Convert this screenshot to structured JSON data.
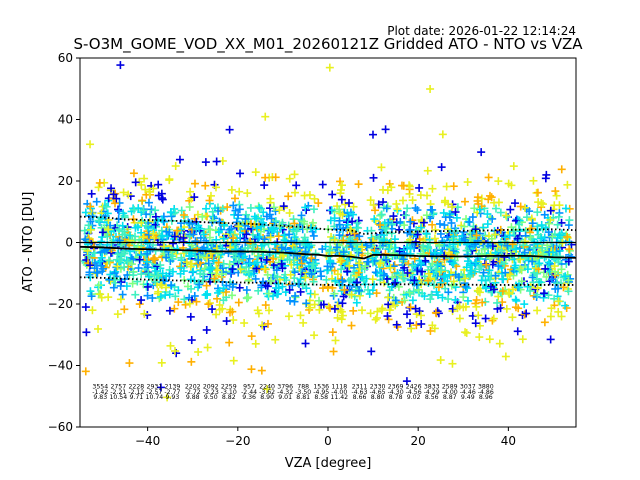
{
  "chart_data": {
    "type": "scatter",
    "plot_date": "Plot date: 2026-01-22 12:14:24",
    "title": "S-O3M_GOME_VOD_XX_M01_20260121Z Gridded ATO - NTO vs VZA",
    "xlabel": "VZA [degree]",
    "ylabel": "ATO - NTO [DU]",
    "xlim": [
      -55,
      55
    ],
    "ylim": [
      -60,
      60
    ],
    "xticks": [
      -40,
      -20,
      0,
      20,
      40
    ],
    "xtick_labels": [
      "−40",
      "−20",
      "0",
      "20",
      "40"
    ],
    "yticks": [
      -60,
      -40,
      -20,
      0,
      20,
      40,
      60
    ],
    "ytick_labels": [
      "−60",
      "−40",
      "−20",
      "0",
      "20",
      "40",
      "60"
    ],
    "zero_line": 0,
    "colors": {
      "navy": "#0000e0",
      "blue": "#0090ff",
      "cyan": "#00e0f0",
      "aqua": "#40f0c0",
      "green": "#80ff80",
      "yellow": "#e8f020",
      "orange": "#ffb000",
      "median": "#000000"
    },
    "stats_x": [
      -50.5,
      -46.5,
      -42.5,
      -38.5,
      -34.5,
      -30,
      -26,
      -22,
      -17.5,
      -13.5,
      -9.5,
      -5.5,
      -1.5,
      2.5,
      7,
      11,
      15,
      19,
      23,
      27,
      31,
      35,
      39,
      43,
      47,
      51
    ],
    "stats": {
      "counts": [
        "3554",
        "2757",
        "2228",
        "2931",
        "2139",
        "2202",
        "2092",
        "2259",
        "957",
        "2240",
        "3796",
        "788",
        "1536",
        "1118",
        "2311",
        "2330",
        "2369",
        "2426",
        "3833",
        "2589",
        "3037",
        "3880",
        "",
        "",
        "",
        ""
      ],
      "median": [
        "-1.42",
        "-2.21",
        "-2.12",
        "-2.57",
        "-2.77",
        "-2.72",
        "-3.23",
        "-3.10",
        "-2.44",
        "-3.62",
        "-4.32",
        "-3.50",
        "-4.95",
        "-4.00",
        "-4.63",
        "-4.65",
        "-4.30",
        "-4.56",
        "-4.29",
        "-4.00",
        "-4.46",
        "-4.86",
        "",
        "",
        "",
        ""
      ],
      "std": [
        "9.83",
        "10.54",
        "9.71",
        "10.74",
        "9.93",
        "9.88",
        "9.50",
        "8.82",
        "9.36",
        "8.90",
        "9.01",
        "8.81",
        "8.58",
        "11.42",
        "8.66",
        "8.80",
        "8.78",
        "9.02",
        "8.56",
        "8.87",
        "9.49",
        "8.96",
        "",
        "",
        "",
        ""
      ]
    },
    "median_line": {
      "x": [
        -55,
        -50,
        -45,
        -40,
        -35,
        -30,
        -25,
        -20,
        -15,
        -10,
        -5,
        -2,
        0,
        2,
        5,
        8,
        10,
        15,
        20,
        25,
        30,
        35,
        40,
        45,
        50,
        55
      ],
      "y": [
        -1.4,
        -1.6,
        -2.0,
        -2.2,
        -2.4,
        -2.6,
        -2.9,
        -2.9,
        -3.0,
        -3.3,
        -3.8,
        -4.0,
        -4.4,
        -4.3,
        -4.6,
        -5.2,
        -4.0,
        -4.1,
        -4.4,
        -4.5,
        -4.5,
        -4.4,
        -4.3,
        -4.4,
        -4.8,
        -5.0
      ]
    },
    "upper_std_line": {
      "x": [
        -55,
        -50,
        -45,
        -40,
        -35,
        -30,
        -25,
        -20,
        -15,
        -10,
        -5,
        0,
        5,
        8,
        10,
        15,
        20,
        25,
        30,
        35,
        40,
        45,
        50,
        55
      ],
      "y": [
        8.4,
        8.2,
        7.5,
        7.3,
        7.1,
        6.8,
        6.4,
        6.2,
        5.9,
        5.4,
        5.0,
        4.2,
        4.0,
        2.8,
        3.0,
        3.4,
        3.6,
        3.7,
        3.8,
        3.9,
        4.1,
        4.2,
        4.3,
        4.0
      ]
    },
    "lower_std_line": {
      "x": [
        -55,
        -50,
        -45,
        -40,
        -35,
        -30,
        -25,
        -20,
        -15,
        -10,
        -5,
        0,
        5,
        10,
        15,
        20,
        25,
        30,
        35,
        40,
        45,
        50,
        55
      ],
      "y": [
        -11.3,
        -11.5,
        -11.8,
        -12.1,
        -12.3,
        -12.5,
        -12.8,
        -13.0,
        -13.1,
        -13.3,
        -13.6,
        -13.8,
        -13.8,
        -13.6,
        -13.6,
        -13.6,
        -13.7,
        -13.7,
        -13.8,
        -13.8,
        -13.8,
        -13.8,
        -13.8
      ]
    }
  }
}
